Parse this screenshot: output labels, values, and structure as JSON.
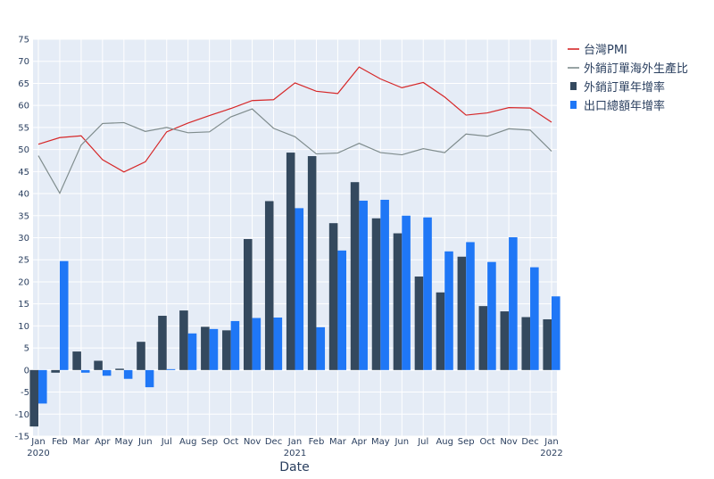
{
  "chart_data": {
    "type": "bar+line",
    "xlabel": "Date",
    "x_ticks": [
      {
        "label": "Jan",
        "sub": "2020"
      },
      {
        "label": "Feb",
        "sub": ""
      },
      {
        "label": "Mar",
        "sub": ""
      },
      {
        "label": "Apr",
        "sub": ""
      },
      {
        "label": "May",
        "sub": ""
      },
      {
        "label": "Jun",
        "sub": ""
      },
      {
        "label": "Jul",
        "sub": ""
      },
      {
        "label": "Aug",
        "sub": ""
      },
      {
        "label": "Sep",
        "sub": ""
      },
      {
        "label": "Oct",
        "sub": ""
      },
      {
        "label": "Nov",
        "sub": ""
      },
      {
        "label": "Dec",
        "sub": ""
      },
      {
        "label": "Jan",
        "sub": "2021"
      },
      {
        "label": "Feb",
        "sub": ""
      },
      {
        "label": "Mar",
        "sub": ""
      },
      {
        "label": "Apr",
        "sub": ""
      },
      {
        "label": "May",
        "sub": ""
      },
      {
        "label": "Jun",
        "sub": ""
      },
      {
        "label": "Jul",
        "sub": ""
      },
      {
        "label": "Aug",
        "sub": ""
      },
      {
        "label": "Sep",
        "sub": ""
      },
      {
        "label": "Oct",
        "sub": ""
      },
      {
        "label": "Nov",
        "sub": ""
      },
      {
        "label": "Dec",
        "sub": ""
      },
      {
        "label": "Jan",
        "sub": "2022"
      }
    ],
    "ylim": [
      -15,
      75
    ],
    "y_ticks": [
      -15,
      -10,
      -5,
      0,
      5,
      10,
      15,
      20,
      25,
      30,
      35,
      40,
      45,
      50,
      55,
      60,
      65,
      70,
      75
    ],
    "grid": true,
    "legend_position": "top-right",
    "series": [
      {
        "name": "台灣PMI",
        "kind": "line",
        "color": "#d62728",
        "values": [
          51.2,
          52.7,
          53.1,
          47.7,
          44.9,
          47.2,
          54.0,
          56.0,
          57.7,
          59.3,
          61.1,
          61.3,
          65.1,
          63.2,
          62.7,
          68.7,
          66.0,
          64.0,
          65.2,
          61.9,
          57.8,
          58.3,
          59.5,
          59.4,
          56.2
        ]
      },
      {
        "name": "外銷訂單海外生產比",
        "kind": "line",
        "color": "#7f8c8d",
        "values": [
          48.6,
          40.1,
          51.0,
          55.9,
          56.1,
          54.1,
          55.0,
          53.8,
          54.0,
          57.4,
          59.2,
          54.8,
          52.9,
          49.0,
          49.2,
          51.4,
          49.3,
          48.8,
          50.2,
          49.3,
          53.5,
          53.0,
          54.7,
          54.4,
          49.6
        ]
      },
      {
        "name": "外銷訂單年增率",
        "kind": "bar",
        "color": "#34495e",
        "values": [
          -12.8,
          -0.6,
          4.2,
          2.1,
          0.3,
          6.4,
          12.3,
          13.5,
          9.8,
          9.0,
          29.7,
          38.3,
          49.3,
          48.5,
          33.3,
          42.6,
          34.4,
          31.0,
          21.2,
          17.6,
          25.7,
          14.5,
          13.3,
          12.0,
          11.5
        ]
      },
      {
        "name": "出口總額年增率",
        "kind": "bar",
        "color": "#1f77f6",
        "values": [
          -7.6,
          24.7,
          -0.6,
          -1.3,
          -2.0,
          -3.9,
          0.2,
          8.3,
          9.3,
          11.1,
          11.8,
          11.9,
          36.7,
          9.7,
          27.1,
          38.4,
          38.6,
          35.0,
          34.6,
          26.9,
          29.0,
          24.5,
          30.1,
          23.3,
          16.7
        ]
      }
    ]
  }
}
